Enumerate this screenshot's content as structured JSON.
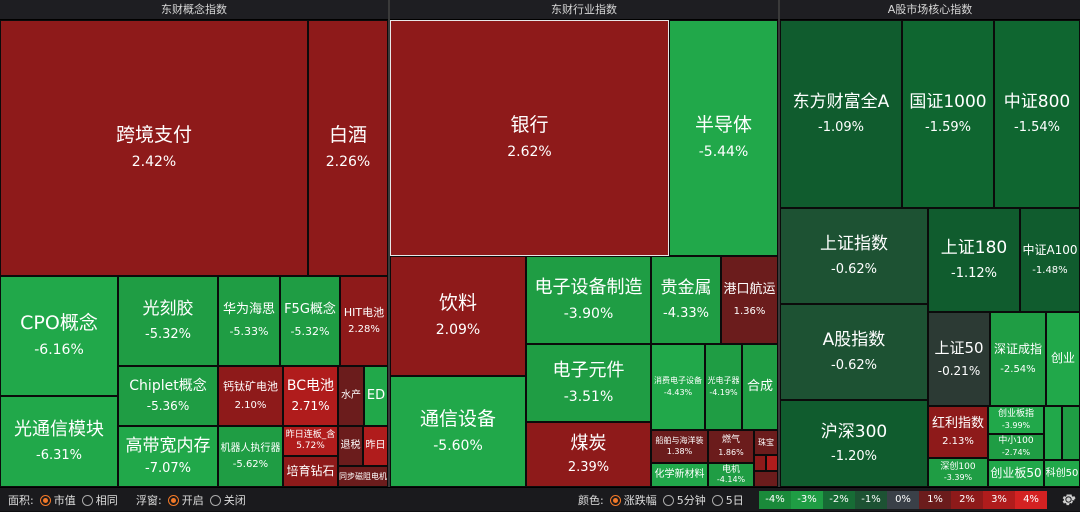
{
  "panels": [
    {
      "title": "东财概念指数"
    },
    {
      "title": "东财行业指数"
    },
    {
      "title": "A股市场核心指数"
    }
  ],
  "concept_tiles": [
    {
      "name": "跨境支付",
      "pct": "2.42%"
    },
    {
      "name": "白酒",
      "pct": "2.26%"
    },
    {
      "name": "CPO概念",
      "pct": "-6.16%"
    },
    {
      "name": "光刻胶",
      "pct": "-5.32%"
    },
    {
      "name": "华为海思",
      "pct": "-5.33%"
    },
    {
      "name": "F5G概念",
      "pct": "-5.32%"
    },
    {
      "name": "HIT电池",
      "pct": "2.28%"
    },
    {
      "name": "Chiplet概念",
      "pct": "-5.36%"
    },
    {
      "name": "钙钛矿电池",
      "pct": "2.10%"
    },
    {
      "name": "BC电池",
      "pct": "2.71%"
    },
    {
      "name": "水产",
      "pct": ""
    },
    {
      "name": "ED",
      "pct": ""
    },
    {
      "name": "光通信模块",
      "pct": "-6.31%"
    },
    {
      "name": "高带宽内存",
      "pct": "-7.07%"
    },
    {
      "name": "机器人执行器",
      "pct": "-5.62%"
    },
    {
      "name": "昨日连板_含",
      "pct": "5.72%"
    },
    {
      "name": "退税",
      "pct": ""
    },
    {
      "name": "昨日",
      "pct": ""
    },
    {
      "name": "培育钻石",
      "pct": ""
    },
    {
      "name": "同步磁阻电机",
      "pct": ""
    }
  ],
  "industry_tiles": [
    {
      "name": "银行",
      "pct": "2.62%"
    },
    {
      "name": "半导体",
      "pct": "-5.44%"
    },
    {
      "name": "饮料",
      "pct": "2.09%"
    },
    {
      "name": "电子设备制造",
      "pct": "-3.90%"
    },
    {
      "name": "贵金属",
      "pct": "-4.33%"
    },
    {
      "name": "港口航运",
      "pct": "1.36%"
    },
    {
      "name": "电子元件",
      "pct": "-3.51%"
    },
    {
      "name": "消费电子设备",
      "pct": "-4.43%"
    },
    {
      "name": "光电子器",
      "pct": "-4.19%"
    },
    {
      "name": "合成",
      "pct": ""
    },
    {
      "name": "通信设备",
      "pct": "-5.60%"
    },
    {
      "name": "煤炭",
      "pct": "2.39%"
    },
    {
      "name": "船舶与海洋装",
      "pct": "1.38%"
    },
    {
      "name": "燃气",
      "pct": "1.86%"
    },
    {
      "name": "珠宝",
      "pct": ""
    },
    {
      "name": "化学新材料",
      "pct": ""
    },
    {
      "name": "电机",
      "pct": "-4.14%"
    }
  ],
  "core_tiles": [
    {
      "name": "东方财富全A",
      "pct": "-1.09%"
    },
    {
      "name": "国证1000",
      "pct": "-1.59%"
    },
    {
      "name": "中证800",
      "pct": "-1.54%"
    },
    {
      "name": "上证指数",
      "pct": "-0.62%"
    },
    {
      "name": "上证180",
      "pct": "-1.12%"
    },
    {
      "name": "中证A100",
      "pct": "-1.48%"
    },
    {
      "name": "A股指数",
      "pct": "-0.62%"
    },
    {
      "name": "上证50",
      "pct": "-0.21%"
    },
    {
      "name": "深证成指",
      "pct": "-2.54%"
    },
    {
      "name": "创业",
      "pct": ""
    },
    {
      "name": "沪深300",
      "pct": "-1.20%"
    },
    {
      "name": "红利指数",
      "pct": "2.13%"
    },
    {
      "name": "创业板指",
      "pct": "-3.99%"
    },
    {
      "name": "中小100",
      "pct": "-2.74%"
    },
    {
      "name": "深创100",
      "pct": "-3.39%"
    },
    {
      "name": "创业板50",
      "pct": ""
    },
    {
      "name": "科创50",
      "pct": ""
    }
  ],
  "controls": {
    "area_label": "面积:",
    "area_opt1": "市值",
    "area_opt2": "相同",
    "float_label": "浮窗:",
    "float_opt1": "开启",
    "float_opt2": "关闭",
    "color_label": "颜色:",
    "color_opt1": "涨跌幅",
    "color_opt2": "5分钟",
    "color_opt3": "5日"
  },
  "legend": [
    {
      "label": "-4%",
      "color": "#1a8a3a"
    },
    {
      "label": "-3%",
      "color": "#1f9d44"
    },
    {
      "label": "-2%",
      "color": "#176b35"
    },
    {
      "label": "-1%",
      "color": "#1d5233"
    },
    {
      "label": "0%",
      "color": "#3a4048"
    },
    {
      "label": "1%",
      "color": "#6b1c1c"
    },
    {
      "label": "2%",
      "color": "#8e1a1a"
    },
    {
      "label": "3%",
      "color": "#b01c1c"
    },
    {
      "label": "4%",
      "color": "#d42222"
    }
  ],
  "colors": {
    "red_dark": "#6e1717",
    "red": "#8f1919",
    "red_bright": "#b51f1f",
    "green_dark": "#0f5a2c",
    "green": "#1d8f3f",
    "green_bright": "#21a84a",
    "neutral": "#2c3a34"
  }
}
